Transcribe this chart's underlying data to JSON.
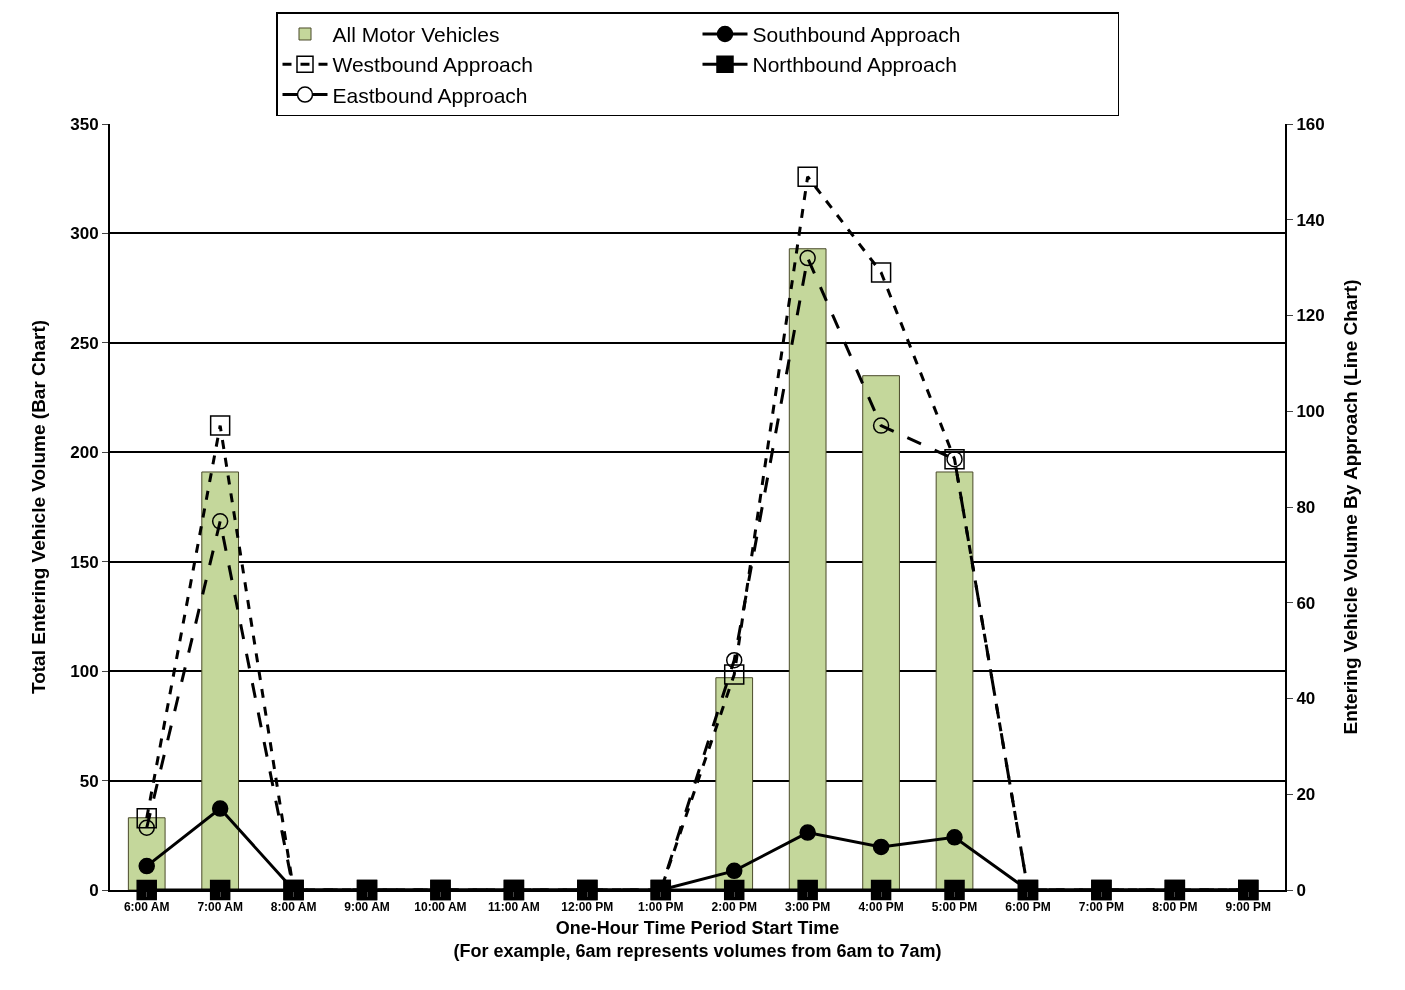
{
  "chart_data": {
    "type": "bar",
    "xlabel": "One-Hour Time Period Start Time\n(For example, 6am represents volumes from 6am to 7am)",
    "ylabel": "Total Entering Vehicle Volume (Bar Chart)",
    "y2label": "Entering Vehicle Volume By Approach (Line Chart)",
    "categories": [
      "6:00 AM",
      "7:00 AM",
      "8:00 AM",
      "9:00 AM",
      "10:00 AM",
      "11:00 AM",
      "12:00 PM",
      "1:00 PM",
      "2:00 PM",
      "3:00 PM",
      "4:00 PM",
      "5:00 PM",
      "6:00 PM",
      "7:00 PM",
      "8:00 PM",
      "9:00 PM"
    ],
    "series": [
      {
        "name": "All Motor Vehicles",
        "color": "#c4d79b",
        "values": [
          33,
          191,
          0,
          0,
          0,
          0,
          0,
          0,
          97,
          293,
          235,
          191,
          0,
          0,
          0,
          0
        ]
      },
      {
        "name": "Southbound Approach",
        "type": "line",
        "axis": "y2",
        "color": "#000000",
        "marker": "circle",
        "line_style": "solid",
        "values": [
          5,
          17,
          0,
          0,
          0,
          0,
          0,
          0,
          4,
          12,
          9,
          11,
          0,
          0,
          0,
          0
        ]
      },
      {
        "name": "Westbound Approach",
        "type": "line",
        "axis": "y2",
        "color": "#000000",
        "marker": "square",
        "line_style": "dotted",
        "values": [
          15,
          97,
          0,
          0,
          0,
          0,
          0,
          0,
          45,
          149,
          129,
          90,
          0,
          0,
          0,
          0
        ]
      },
      {
        "name": "Northbound Approach",
        "type": "line",
        "axis": "y2",
        "color": "#000000",
        "marker": "square",
        "line_style": "solid",
        "values": [
          0,
          0,
          0,
          0,
          0,
          0,
          0,
          0,
          0,
          0,
          0,
          0,
          0,
          0,
          0,
          0
        ]
      },
      {
        "name": "Eastbound Approach",
        "type": "line",
        "axis": "y2",
        "color": "#000000",
        "marker": "circle",
        "line_style": "dashed",
        "values": [
          13,
          77,
          0,
          0,
          0,
          0,
          0,
          0,
          48,
          132,
          97,
          90,
          0,
          0,
          0,
          0
        ]
      }
    ],
    "ylim": [
      0,
      350
    ],
    "yticks": [
      0,
      50,
      100,
      150,
      200,
      250,
      300,
      350
    ],
    "y2lim": [
      0,
      160
    ],
    "y2ticks": [
      0,
      20,
      40,
      60,
      80,
      100,
      120,
      140,
      160
    ],
    "grid": "y",
    "legend": "top"
  }
}
